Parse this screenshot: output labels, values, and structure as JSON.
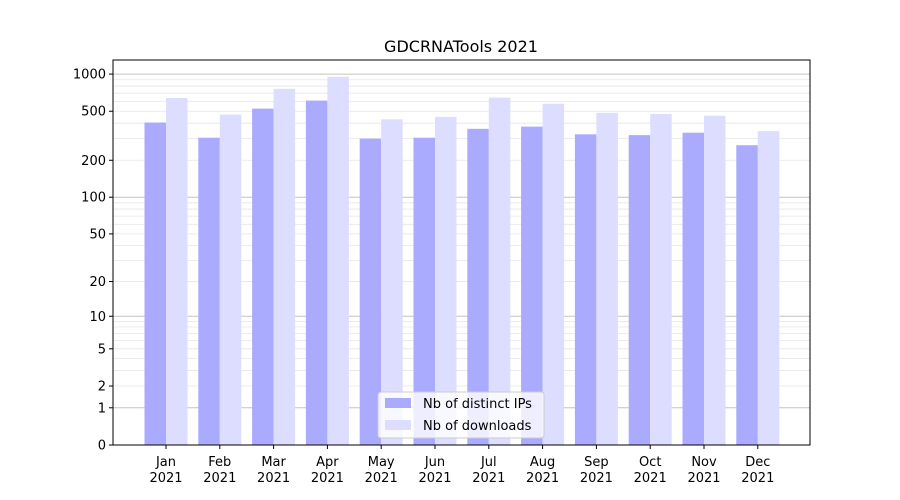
{
  "chart_data": {
    "type": "bar",
    "title": "GDCRNATools 2021",
    "yscale": "symlog",
    "ylim": [
      0,
      1300
    ],
    "yticks": [
      0,
      1,
      2,
      5,
      10,
      20,
      50,
      100,
      200,
      500,
      1000
    ],
    "ytick_labels": [
      "0",
      "1",
      "2",
      "5",
      "10",
      "20",
      "50",
      "100",
      "200",
      "500",
      "1000"
    ],
    "categories": [
      {
        "month": "Jan",
        "year": "2021"
      },
      {
        "month": "Feb",
        "year": "2021"
      },
      {
        "month": "Mar",
        "year": "2021"
      },
      {
        "month": "Apr",
        "year": "2021"
      },
      {
        "month": "May",
        "year": "2021"
      },
      {
        "month": "Jun",
        "year": "2021"
      },
      {
        "month": "Jul",
        "year": "2021"
      },
      {
        "month": "Aug",
        "year": "2021"
      },
      {
        "month": "Sep",
        "year": "2021"
      },
      {
        "month": "Oct",
        "year": "2021"
      },
      {
        "month": "Nov",
        "year": "2021"
      },
      {
        "month": "Dec",
        "year": "2021"
      }
    ],
    "series": [
      {
        "name": "Nb of distinct IPs",
        "color": "#aaaaff",
        "values": [
          405,
          305,
          525,
          610,
          300,
          305,
          360,
          375,
          325,
          320,
          335,
          265
        ]
      },
      {
        "name": "Nb of downloads",
        "color": "#ddddff",
        "values": [
          640,
          470,
          760,
          950,
          430,
          450,
          645,
          575,
          485,
          475,
          460,
          345
        ]
      }
    ],
    "grid": true,
    "legend_position": "bottom-center"
  }
}
